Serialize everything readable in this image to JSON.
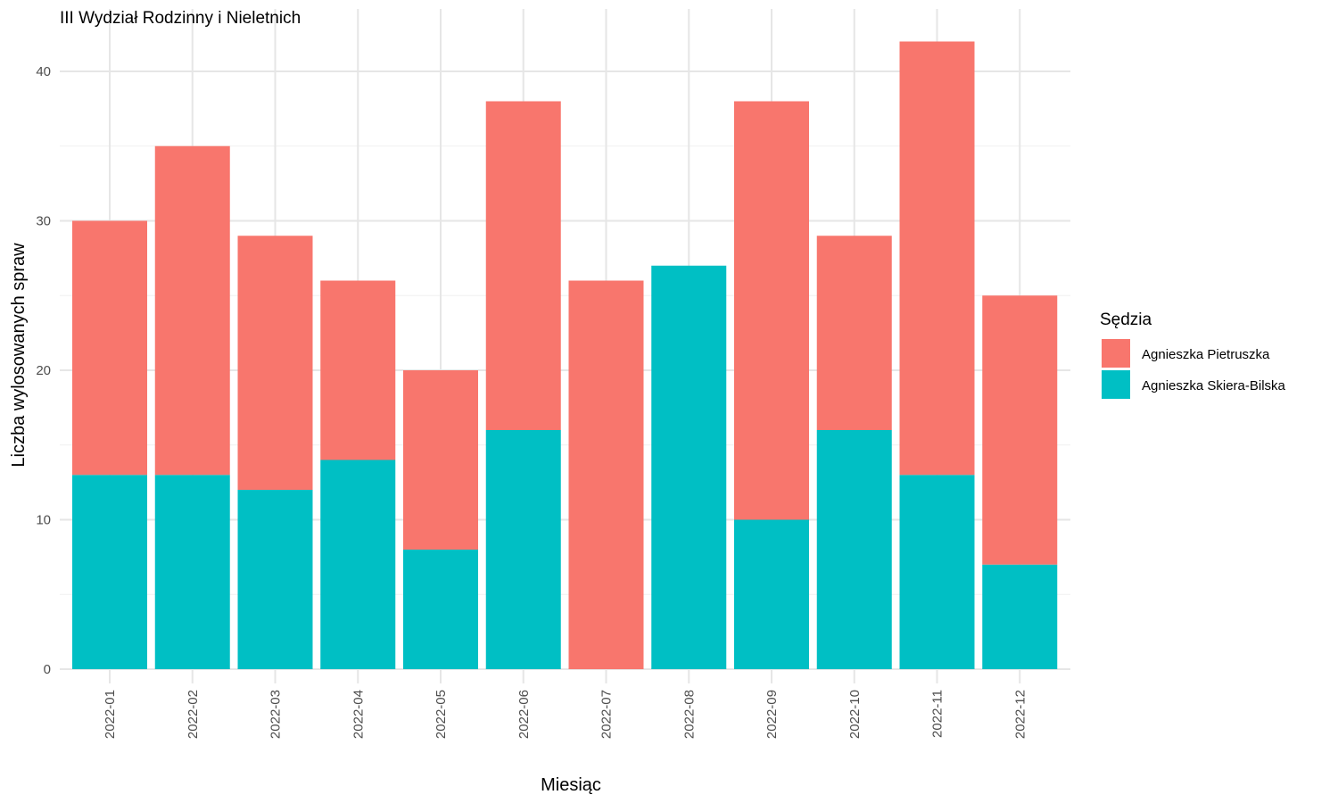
{
  "chart_data": {
    "type": "bar",
    "stacked": true,
    "title": "III Wydział Rodzinny i Nieletnich",
    "xlabel": "Miesiąc",
    "ylabel": "Liczba wylosowanych spraw",
    "categories": [
      "2022-01",
      "2022-02",
      "2022-03",
      "2022-04",
      "2022-05",
      "2022-06",
      "2022-07",
      "2022-08",
      "2022-09",
      "2022-10",
      "2022-11",
      "2022-12"
    ],
    "series": [
      {
        "name": "Agnieszka Skiera-Bilska",
        "color": "#00BFC4",
        "values": [
          13,
          13,
          12,
          14,
          8,
          16,
          0,
          27,
          10,
          16,
          13,
          7
        ]
      },
      {
        "name": "Agnieszka Pietruszka",
        "color": "#F8766D",
        "values": [
          17,
          22,
          17,
          12,
          12,
          22,
          26,
          0,
          28,
          13,
          29,
          18
        ]
      }
    ],
    "ylim": [
      0,
      43.5
    ],
    "yticks": [
      0,
      10,
      20,
      30,
      40
    ],
    "grid": true,
    "legend": {
      "title": "Sędzia",
      "position": "right",
      "entries": [
        "Agnieszka Pietruszka",
        "Agnieszka Skiera-Bilska"
      ]
    }
  }
}
